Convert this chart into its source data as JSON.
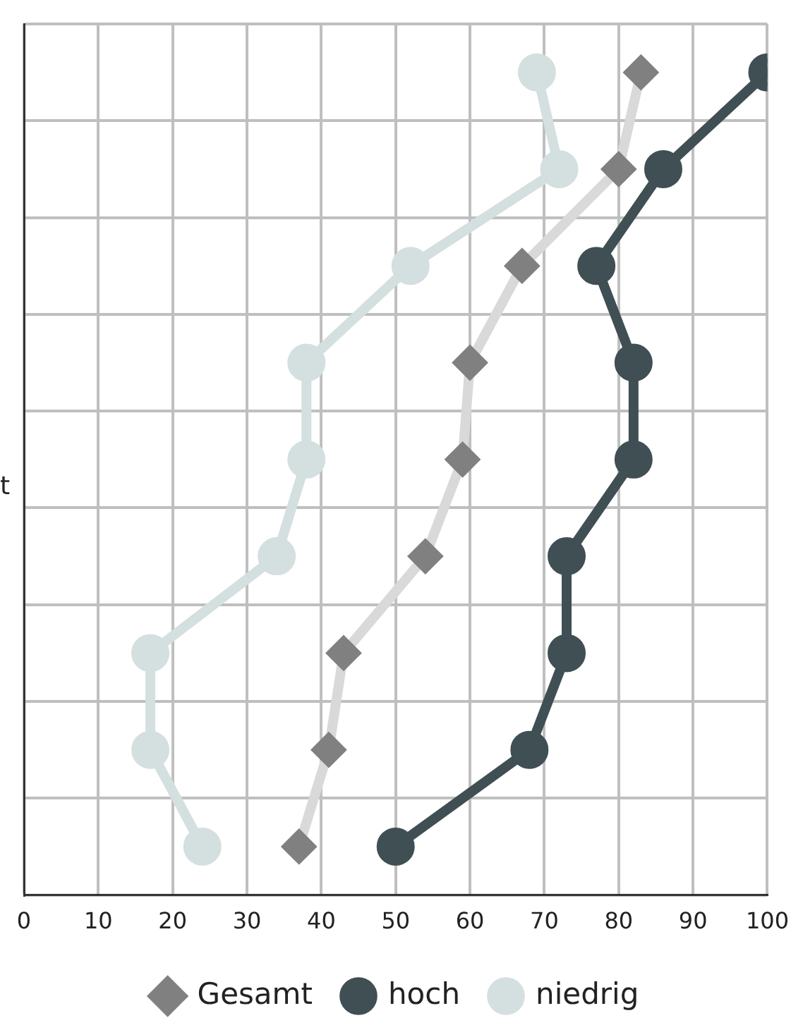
{
  "chart_data": {
    "type": "line",
    "orientation": "horizontal",
    "categories": [
      null,
      null,
      null,
      null,
      null,
      null,
      null,
      null,
      null
    ],
    "series": [
      {
        "name": "Gesamt",
        "color": "#d9d9d9",
        "colors": [
          "#808080",
          "#808080",
          "#808080",
          "#808080",
          "#808080",
          "#808080",
          "#808080",
          "#808080",
          "#808080"
        ],
        "marker": "diamond",
        "values": [
          83,
          80,
          67,
          60,
          59,
          54,
          43,
          41,
          37
        ]
      },
      {
        "name": "hoch",
        "color": "#3f4f53",
        "marker": "circle",
        "values": [
          100,
          86,
          77,
          82,
          82,
          73,
          73,
          68,
          50
        ]
      },
      {
        "name": "niedrig",
        "color": "#d4dfe0",
        "marker": "circle",
        "values": [
          69,
          72,
          52,
          38,
          38,
          34,
          17,
          17,
          24
        ]
      }
    ],
    "xlim": [
      0,
      100
    ],
    "xticks": [
      0,
      10,
      20,
      30,
      40,
      50,
      60,
      70,
      80,
      90,
      100
    ],
    "grid": true,
    "legend": "bottom",
    "tick_labels": "x",
    "annotations": [
      "t"
    ]
  }
}
